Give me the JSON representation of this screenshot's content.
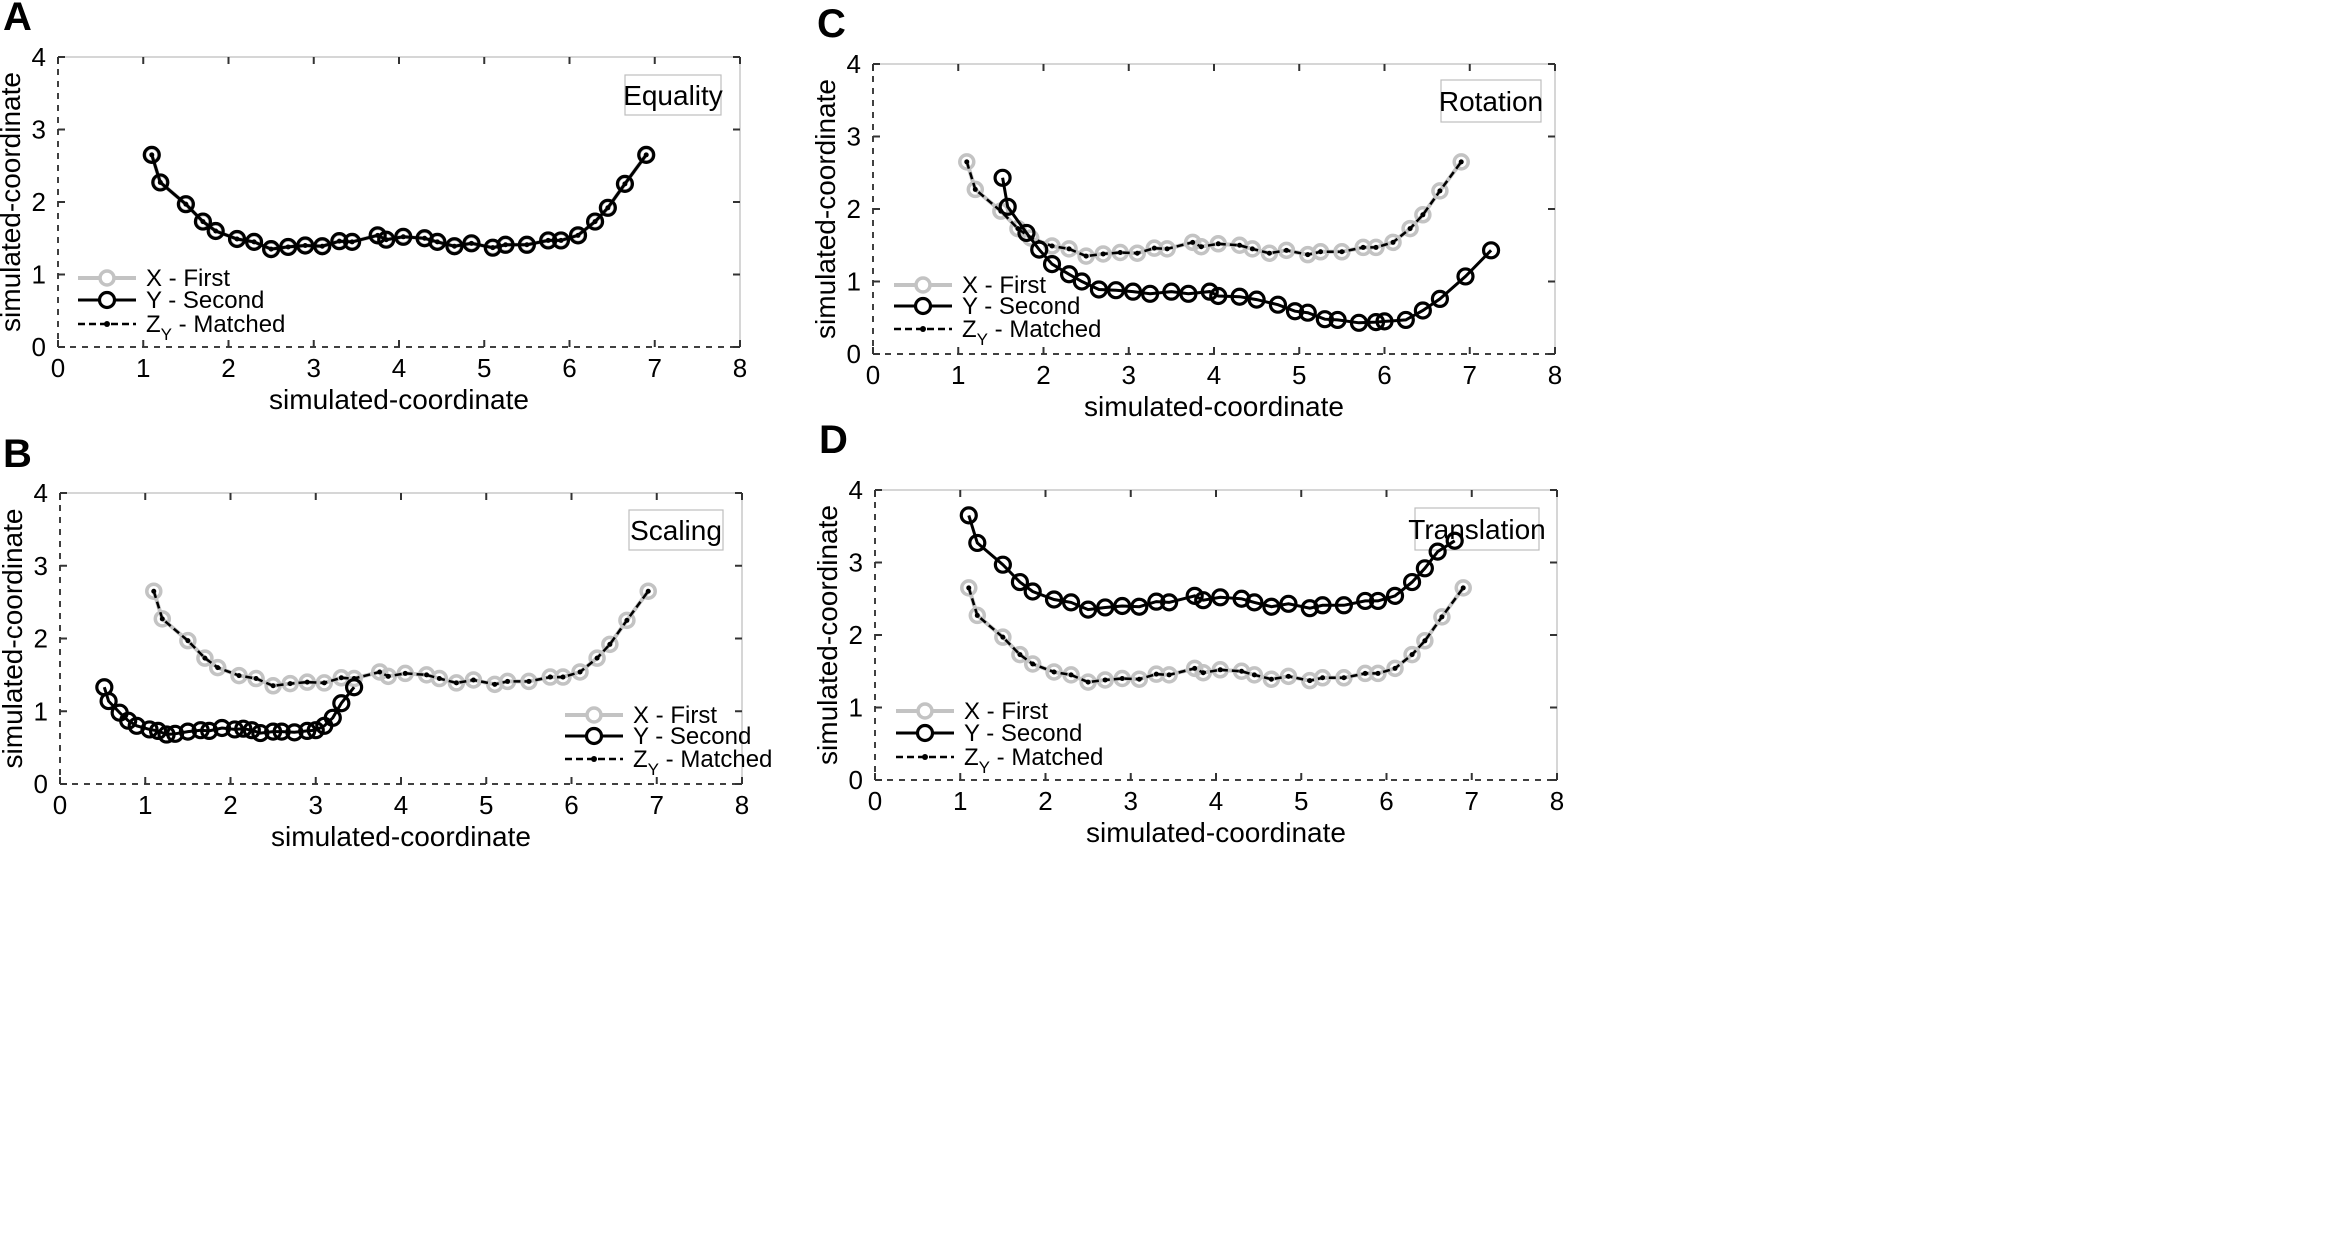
{
  "chart_data": [
    {
      "panel": "A",
      "type": "line",
      "title": "Equality",
      "xlabel": "simulated-coordinate",
      "ylabel": "simulated-coordinate",
      "xlim": [
        0,
        8
      ],
      "ylim": [
        0,
        4
      ],
      "xticks": [
        0,
        1,
        2,
        3,
        4,
        5,
        6,
        7,
        8
      ],
      "yticks": [
        0,
        1,
        2,
        3,
        4
      ],
      "legend_position": "lower-left",
      "legend": [
        "X - First",
        "Y - Second",
        "Z",
        "Y",
        " - Matched"
      ],
      "series": [
        {
          "name": "X - First",
          "style": "first",
          "x": [
            1.1,
            1.2,
            1.5,
            1.7,
            1.85,
            2.1,
            2.3,
            2.5,
            2.7,
            2.9,
            3.1,
            3.3,
            3.45,
            3.75,
            3.85,
            4.05,
            4.3,
            4.45,
            4.65,
            4.85,
            5.1,
            5.25,
            5.5,
            5.75,
            5.9,
            6.1,
            6.3,
            6.45,
            6.65,
            6.9
          ],
          "y": [
            2.65,
            2.27,
            1.97,
            1.73,
            1.6,
            1.49,
            1.45,
            1.35,
            1.38,
            1.4,
            1.39,
            1.46,
            1.45,
            1.54,
            1.48,
            1.52,
            1.5,
            1.45,
            1.39,
            1.43,
            1.37,
            1.41,
            1.41,
            1.47,
            1.47,
            1.54,
            1.73,
            1.92,
            2.25,
            2.65
          ]
        },
        {
          "name": "Y - Second",
          "style": "second",
          "x": [
            1.1,
            1.2,
            1.5,
            1.7,
            1.85,
            2.1,
            2.3,
            2.5,
            2.7,
            2.9,
            3.1,
            3.3,
            3.45,
            3.75,
            3.85,
            4.05,
            4.3,
            4.45,
            4.65,
            4.85,
            5.1,
            5.25,
            5.5,
            5.75,
            5.9,
            6.1,
            6.3,
            6.45,
            6.65,
            6.9
          ],
          "y": [
            2.65,
            2.27,
            1.97,
            1.73,
            1.6,
            1.49,
            1.45,
            1.35,
            1.38,
            1.4,
            1.39,
            1.46,
            1.45,
            1.54,
            1.48,
            1.52,
            1.5,
            1.45,
            1.39,
            1.43,
            1.37,
            1.41,
            1.41,
            1.47,
            1.47,
            1.54,
            1.73,
            1.92,
            2.25,
            2.65
          ]
        },
        {
          "name": "ZY - Matched",
          "style": "matched",
          "x": [
            1.1,
            1.2,
            1.5,
            1.7,
            1.85,
            2.1,
            2.3,
            2.5,
            2.7,
            2.9,
            3.1,
            3.3,
            3.45,
            3.75,
            3.85,
            4.05,
            4.3,
            4.45,
            4.65,
            4.85,
            5.1,
            5.25,
            5.5,
            5.75,
            5.9,
            6.1,
            6.3,
            6.45,
            6.65,
            6.9
          ],
          "y": [
            2.65,
            2.27,
            1.97,
            1.73,
            1.6,
            1.49,
            1.45,
            1.35,
            1.38,
            1.4,
            1.39,
            1.46,
            1.45,
            1.54,
            1.48,
            1.52,
            1.5,
            1.45,
            1.39,
            1.43,
            1.37,
            1.41,
            1.41,
            1.47,
            1.47,
            1.54,
            1.73,
            1.92,
            2.25,
            2.65
          ]
        }
      ]
    },
    {
      "panel": "B",
      "type": "line",
      "title": "Scaling",
      "xlabel": "simulated-coordinate",
      "ylabel": "simulated-coordinate",
      "xlim": [
        0,
        8
      ],
      "ylim": [
        0,
        4
      ],
      "xticks": [
        0,
        1,
        2,
        3,
        4,
        5,
        6,
        7,
        8
      ],
      "yticks": [
        0,
        1,
        2,
        3,
        4
      ],
      "legend_position": "lower-right",
      "legend": [
        "X - First",
        "Y - Second",
        "Z",
        "Y",
        " - Matched"
      ],
      "series": [
        {
          "name": "X - First",
          "style": "first",
          "x": [
            1.1,
            1.2,
            1.5,
            1.7,
            1.85,
            2.1,
            2.3,
            2.5,
            2.7,
            2.9,
            3.1,
            3.3,
            3.45,
            3.75,
            3.85,
            4.05,
            4.3,
            4.45,
            4.65,
            4.85,
            5.1,
            5.25,
            5.5,
            5.75,
            5.9,
            6.1,
            6.3,
            6.45,
            6.65,
            6.9
          ],
          "y": [
            2.65,
            2.27,
            1.97,
            1.73,
            1.6,
            1.49,
            1.45,
            1.35,
            1.38,
            1.4,
            1.39,
            1.46,
            1.45,
            1.54,
            1.48,
            1.52,
            1.5,
            1.45,
            1.39,
            1.43,
            1.37,
            1.41,
            1.41,
            1.47,
            1.47,
            1.54,
            1.73,
            1.92,
            2.25,
            2.65
          ]
        },
        {
          "name": "Y - Second",
          "style": "second",
          "x": [
            0.52,
            0.57,
            0.7,
            0.8,
            0.9,
            1.05,
            1.15,
            1.25,
            1.35,
            1.5,
            1.65,
            1.75,
            1.9,
            2.05,
            2.15,
            2.25,
            2.35,
            2.5,
            2.6,
            2.75,
            2.9,
            3.0,
            3.1,
            3.2,
            3.3,
            3.45
          ],
          "y": [
            1.33,
            1.14,
            0.98,
            0.87,
            0.8,
            0.75,
            0.73,
            0.68,
            0.69,
            0.72,
            0.74,
            0.73,
            0.77,
            0.75,
            0.76,
            0.74,
            0.7,
            0.72,
            0.72,
            0.71,
            0.73,
            0.74,
            0.8,
            0.91,
            1.11,
            1.33
          ]
        },
        {
          "name": "ZY - Matched",
          "style": "matched",
          "x": [
            1.1,
            1.2,
            1.5,
            1.7,
            1.85,
            2.1,
            2.3,
            2.5,
            2.7,
            2.9,
            3.1,
            3.3,
            3.45,
            3.75,
            3.85,
            4.05,
            4.3,
            4.45,
            4.65,
            4.85,
            5.1,
            5.25,
            5.5,
            5.75,
            5.9,
            6.1,
            6.3,
            6.45,
            6.65,
            6.9
          ],
          "y": [
            2.65,
            2.27,
            1.97,
            1.73,
            1.6,
            1.49,
            1.45,
            1.35,
            1.38,
            1.4,
            1.39,
            1.46,
            1.45,
            1.54,
            1.48,
            1.52,
            1.5,
            1.45,
            1.39,
            1.43,
            1.37,
            1.41,
            1.41,
            1.47,
            1.47,
            1.54,
            1.73,
            1.92,
            2.25,
            2.65
          ]
        }
      ]
    },
    {
      "panel": "C",
      "type": "line",
      "title": "Rotation",
      "xlabel": "simulated-coordinate",
      "ylabel": "simulated-coordinate",
      "xlim": [
        0,
        8
      ],
      "ylim": [
        0,
        4
      ],
      "xticks": [
        0,
        1,
        2,
        3,
        4,
        5,
        6,
        7,
        8
      ],
      "yticks": [
        0,
        1,
        2,
        3,
        4
      ],
      "legend_position": "lower-left",
      "legend": [
        "X - First",
        "Y - Second",
        "Z",
        "Y",
        " - Matched"
      ],
      "series": [
        {
          "name": "X - First",
          "style": "first",
          "x": [
            1.1,
            1.2,
            1.5,
            1.7,
            1.85,
            2.1,
            2.3,
            2.5,
            2.7,
            2.9,
            3.1,
            3.3,
            3.45,
            3.75,
            3.85,
            4.05,
            4.3,
            4.45,
            4.65,
            4.85,
            5.1,
            5.25,
            5.5,
            5.75,
            5.9,
            6.1,
            6.3,
            6.45,
            6.65,
            6.9
          ],
          "y": [
            2.65,
            2.27,
            1.97,
            1.73,
            1.6,
            1.49,
            1.45,
            1.35,
            1.38,
            1.4,
            1.39,
            1.46,
            1.45,
            1.54,
            1.48,
            1.52,
            1.5,
            1.45,
            1.39,
            1.43,
            1.37,
            1.41,
            1.41,
            1.47,
            1.47,
            1.54,
            1.73,
            1.92,
            2.25,
            2.65
          ]
        },
        {
          "name": "Y - Second",
          "style": "second",
          "x": [
            1.52,
            1.58,
            1.8,
            1.95,
            2.1,
            2.3,
            2.45,
            2.65,
            2.85,
            3.05,
            3.25,
            3.5,
            3.7,
            3.95,
            4.05,
            4.3,
            4.5,
            4.75,
            4.95,
            5.1,
            5.3,
            5.45,
            5.7,
            5.9,
            6.0,
            6.25,
            6.45,
            6.65,
            6.95,
            7.25
          ],
          "y": [
            2.43,
            2.03,
            1.67,
            1.44,
            1.24,
            1.1,
            1.0,
            0.89,
            0.88,
            0.86,
            0.83,
            0.86,
            0.83,
            0.86,
            0.8,
            0.79,
            0.75,
            0.68,
            0.59,
            0.57,
            0.48,
            0.47,
            0.43,
            0.44,
            0.45,
            0.47,
            0.6,
            0.76,
            1.07,
            1.43
          ]
        },
        {
          "name": "ZY - Matched",
          "style": "matched",
          "x": [
            1.1,
            1.2,
            1.5,
            1.7,
            1.85,
            2.1,
            2.3,
            2.5,
            2.7,
            2.9,
            3.1,
            3.3,
            3.45,
            3.75,
            3.85,
            4.05,
            4.3,
            4.45,
            4.65,
            4.85,
            5.1,
            5.25,
            5.5,
            5.75,
            5.9,
            6.1,
            6.3,
            6.45,
            6.65,
            6.9
          ],
          "y": [
            2.65,
            2.27,
            1.97,
            1.73,
            1.6,
            1.49,
            1.45,
            1.35,
            1.38,
            1.4,
            1.39,
            1.46,
            1.45,
            1.54,
            1.48,
            1.52,
            1.5,
            1.45,
            1.39,
            1.43,
            1.37,
            1.41,
            1.41,
            1.47,
            1.47,
            1.54,
            1.73,
            1.92,
            2.25,
            2.65
          ]
        }
      ]
    },
    {
      "panel": "D",
      "type": "line",
      "title": "Translation",
      "xlabel": "simulated-coordinate",
      "ylabel": "simulated-coordinate",
      "xlim": [
        0,
        8
      ],
      "ylim": [
        0,
        4
      ],
      "xticks": [
        0,
        1,
        2,
        3,
        4,
        5,
        6,
        7,
        8
      ],
      "yticks": [
        0,
        1,
        2,
        3,
        4
      ],
      "legend_position": "lower-left",
      "legend": [
        "X - First",
        "Y - Second",
        "Z",
        "Y",
        " - Matched"
      ],
      "series": [
        {
          "name": "X - First",
          "style": "first",
          "x": [
            1.1,
            1.2,
            1.5,
            1.7,
            1.85,
            2.1,
            2.3,
            2.5,
            2.7,
            2.9,
            3.1,
            3.3,
            3.45,
            3.75,
            3.85,
            4.05,
            4.3,
            4.45,
            4.65,
            4.85,
            5.1,
            5.25,
            5.5,
            5.75,
            5.9,
            6.1,
            6.3,
            6.45,
            6.65,
            6.9
          ],
          "y": [
            2.65,
            2.27,
            1.97,
            1.73,
            1.6,
            1.49,
            1.45,
            1.35,
            1.38,
            1.4,
            1.39,
            1.46,
            1.45,
            1.54,
            1.48,
            1.52,
            1.5,
            1.45,
            1.39,
            1.43,
            1.37,
            1.41,
            1.41,
            1.47,
            1.47,
            1.54,
            1.73,
            1.92,
            2.25,
            2.65
          ]
        },
        {
          "name": "Y - Second",
          "style": "second",
          "x": [
            1.1,
            1.2,
            1.5,
            1.7,
            1.85,
            2.1,
            2.3,
            2.5,
            2.7,
            2.9,
            3.1,
            3.3,
            3.45,
            3.75,
            3.85,
            4.05,
            4.3,
            4.45,
            4.65,
            4.85,
            5.1,
            5.25,
            5.5,
            5.75,
            5.9,
            6.1,
            6.3,
            6.45,
            6.6,
            6.8
          ],
          "y": [
            3.65,
            3.27,
            2.97,
            2.73,
            2.6,
            2.49,
            2.45,
            2.35,
            2.38,
            2.4,
            2.39,
            2.46,
            2.45,
            2.54,
            2.48,
            2.52,
            2.5,
            2.45,
            2.39,
            2.43,
            2.37,
            2.41,
            2.41,
            2.47,
            2.47,
            2.54,
            2.73,
            2.92,
            3.15,
            3.3
          ]
        },
        {
          "name": "ZY - Matched",
          "style": "matched",
          "x": [
            1.1,
            1.2,
            1.5,
            1.7,
            1.85,
            2.1,
            2.3,
            2.5,
            2.7,
            2.9,
            3.1,
            3.3,
            3.45,
            3.75,
            3.85,
            4.05,
            4.3,
            4.45,
            4.65,
            4.85,
            5.1,
            5.25,
            5.5,
            5.75,
            5.9,
            6.1,
            6.3,
            6.45,
            6.65,
            6.9
          ],
          "y": [
            2.65,
            2.27,
            1.97,
            1.73,
            1.6,
            1.49,
            1.45,
            1.35,
            1.38,
            1.4,
            1.39,
            1.46,
            1.45,
            1.54,
            1.48,
            1.52,
            1.5,
            1.45,
            1.39,
            1.43,
            1.37,
            1.41,
            1.41,
            1.47,
            1.47,
            1.54,
            1.73,
            1.92,
            2.25,
            2.65
          ]
        }
      ]
    }
  ],
  "colors": {
    "first": "#c3c3c3",
    "second": "#000000",
    "matched": "#000000",
    "axis": "#000000",
    "frame": "#c8c8c8",
    "tick_dash": "#333333"
  }
}
